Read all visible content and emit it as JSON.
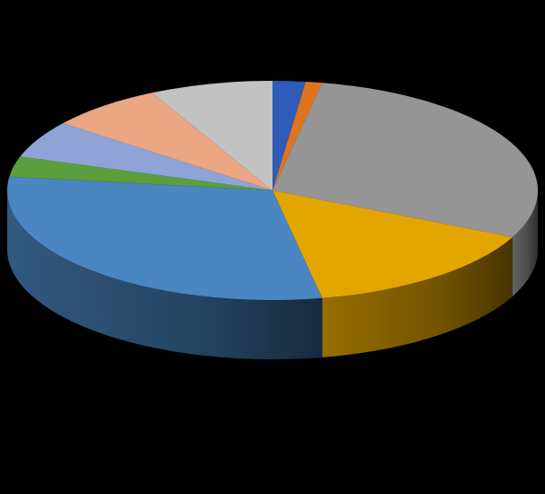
{
  "chart_data": {
    "type": "pie",
    "style": "3d",
    "background": "#000000",
    "slices": [
      {
        "value": 2.0,
        "color": "#2E5CB8"
      },
      {
        "value": 1.0,
        "color": "#E0741E"
      },
      {
        "value": 29.0,
        "color": "#959595"
      },
      {
        "value": 15.0,
        "color": "#E3A600"
      },
      {
        "value": 30.0,
        "color": "#4A86C2"
      },
      {
        "value": 3.0,
        "color": "#5A9E3E"
      },
      {
        "value": 5.5,
        "color": "#8FA3D6"
      },
      {
        "value": 7.0,
        "color": "#EBA684"
      },
      {
        "value": 7.5,
        "color": "#C2C2C2"
      }
    ]
  }
}
